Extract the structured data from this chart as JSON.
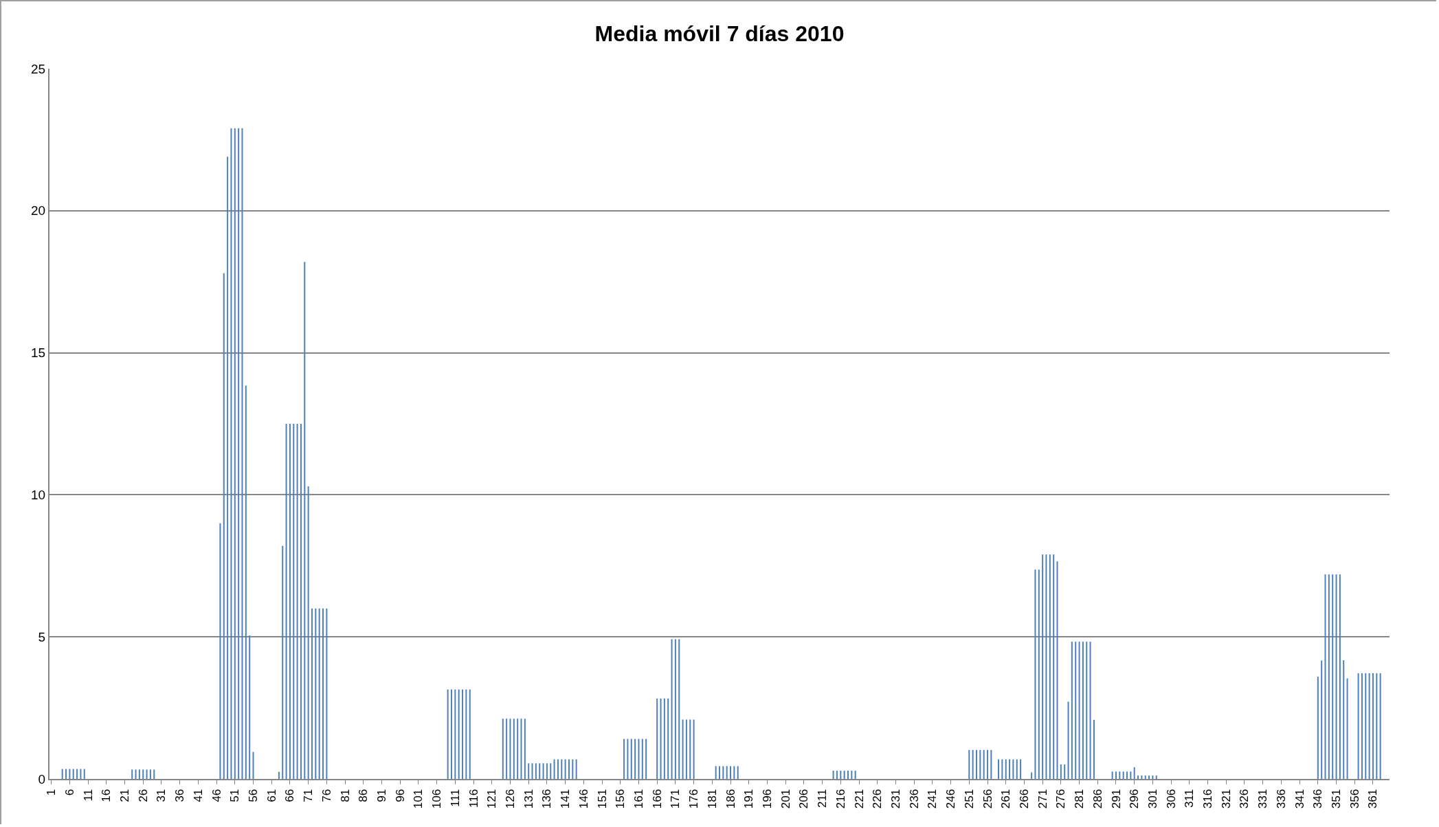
{
  "chart_data": {
    "type": "bar",
    "title": "Media móvil 7 días 2010",
    "color": "#4f81bd",
    "ylim": [
      0,
      25
    ],
    "yticks": [
      0,
      5,
      10,
      15,
      20,
      25
    ],
    "grid": "y",
    "categories": [
      "1",
      null,
      null,
      null,
      null,
      "6",
      null,
      null,
      null,
      null,
      "11",
      null,
      null,
      null,
      null,
      "16",
      null,
      null,
      null,
      null,
      "21",
      null,
      null,
      null,
      null,
      "26",
      null,
      null,
      null,
      null,
      "31",
      null,
      null,
      null,
      null,
      "36",
      null,
      null,
      null,
      null,
      "41",
      null,
      null,
      null,
      null,
      "46",
      null,
      null,
      null,
      null,
      "51",
      null,
      null,
      null,
      null,
      "56",
      null,
      null,
      null,
      null,
      "61",
      null,
      null,
      null,
      null,
      "66",
      null,
      null,
      null,
      null,
      "71",
      null,
      null,
      null,
      null,
      "76",
      null,
      null,
      null,
      null,
      "81",
      null,
      null,
      null,
      null,
      "86",
      null,
      null,
      null,
      null,
      "91",
      null,
      null,
      null,
      null,
      "96",
      null,
      null,
      null,
      null,
      "101",
      null,
      null,
      null,
      null,
      "106",
      null,
      null,
      null,
      null,
      "111",
      null,
      null,
      null,
      null,
      "116",
      null,
      null,
      null,
      null,
      "121",
      null,
      null,
      null,
      null,
      "126",
      null,
      null,
      null,
      null,
      "131",
      null,
      null,
      null,
      null,
      "136",
      null,
      null,
      null,
      null,
      "141",
      null,
      null,
      null,
      null,
      "146",
      null,
      null,
      null,
      null,
      "151",
      null,
      null,
      null,
      null,
      "156",
      null,
      null,
      null,
      null,
      "161",
      null,
      null,
      null,
      null,
      "166",
      null,
      null,
      null,
      null,
      "171",
      null,
      null,
      null,
      null,
      "176",
      null,
      null,
      null,
      null,
      "181",
      null,
      null,
      null,
      null,
      "186",
      null,
      null,
      null,
      null,
      "191",
      null,
      null,
      null,
      null,
      "196",
      null,
      null,
      null,
      null,
      "201",
      null,
      null,
      null,
      null,
      "206",
      null,
      null,
      null,
      null,
      "211",
      null,
      null,
      null,
      null,
      "216",
      null,
      null,
      null,
      null,
      "221",
      null,
      null,
      null,
      null,
      "226",
      null,
      null,
      null,
      null,
      "231",
      null,
      null,
      null,
      null,
      "236",
      null,
      null,
      null,
      null,
      "241",
      null,
      null,
      null,
      null,
      "246",
      null,
      null,
      null,
      null,
      "251",
      null,
      null,
      null,
      null,
      "256",
      null,
      null,
      null,
      null,
      "261",
      null,
      null,
      null,
      null,
      "266",
      null,
      null,
      null,
      null,
      "271",
      null,
      null,
      null,
      null,
      "276",
      null,
      null,
      null,
      null,
      "281",
      null,
      null,
      null,
      null,
      "286",
      null,
      null,
      null,
      null,
      "291",
      null,
      null,
      null,
      null,
      "296",
      null,
      null,
      null,
      null,
      "301",
      null,
      null,
      null,
      null,
      "306",
      null,
      null,
      null,
      null,
      "311",
      null,
      null,
      null,
      null,
      "316",
      null,
      null,
      null,
      null,
      "321",
      null,
      null,
      null,
      null,
      "326",
      null,
      null,
      null,
      null,
      "331",
      null,
      null,
      null,
      null,
      "336",
      null,
      null,
      null,
      null,
      "341",
      null,
      null,
      null,
      null,
      "346",
      null,
      null,
      null,
      null,
      "351",
      null,
      null,
      null,
      null,
      "356",
      null,
      null,
      null,
      null,
      "361",
      null,
      null,
      null,
      null
    ],
    "values": [
      0,
      0,
      0,
      0.35,
      0.35,
      0.35,
      0.35,
      0.35,
      0.35,
      0.35,
      0,
      0,
      0,
      0,
      0,
      0,
      0,
      0,
      0,
      0,
      0,
      0,
      0.33,
      0.33,
      0.33,
      0.33,
      0.33,
      0.33,
      0.33,
      0,
      0,
      0,
      0,
      0,
      0,
      0,
      0,
      0,
      0,
      0,
      0,
      0,
      0,
      0,
      0,
      0,
      9,
      17.8,
      21.9,
      22.9,
      22.9,
      22.9,
      22.9,
      13.85,
      5.05,
      0.95,
      0,
      0,
      0,
      0,
      0,
      0,
      0.25,
      8.2,
      12.5,
      12.5,
      12.5,
      12.5,
      12.5,
      18.2,
      10.3,
      6,
      6,
      6,
      6,
      6,
      0,
      0,
      0,
      0,
      0,
      0,
      0,
      0,
      0,
      0,
      0,
      0,
      0,
      0,
      0,
      0,
      0,
      0,
      0,
      0,
      0,
      0,
      0,
      0,
      0,
      0,
      0,
      0,
      0,
      0,
      0,
      0,
      3.15,
      3.15,
      3.15,
      3.15,
      3.15,
      3.15,
      3.15,
      0,
      0,
      0,
      0,
      0,
      0,
      0,
      0,
      2.12,
      2.12,
      2.12,
      2.12,
      2.12,
      2.12,
      2.12,
      0.55,
      0.55,
      0.55,
      0.55,
      0.55,
      0.55,
      0.55,
      0.69,
      0.69,
      0.69,
      0.69,
      0.69,
      0.69,
      0.69,
      0,
      0,
      0,
      0,
      0,
      0,
      0,
      0,
      0,
      0,
      0,
      0,
      1.41,
      1.41,
      1.41,
      1.41,
      1.41,
      1.41,
      1.41,
      0,
      0,
      2.83,
      2.83,
      2.83,
      2.83,
      4.92,
      4.92,
      4.92,
      2.09,
      2.09,
      2.09,
      2.09,
      0,
      0,
      0,
      0,
      0,
      0.45,
      0.45,
      0.45,
      0.45,
      0.45,
      0.45,
      0.45,
      0,
      0,
      0,
      0,
      0,
      0,
      0,
      0,
      0,
      0,
      0,
      0,
      0,
      0,
      0,
      0,
      0,
      0,
      0,
      0,
      0,
      0,
      0,
      0,
      0,
      0.29,
      0.29,
      0.29,
      0.29,
      0.29,
      0.29,
      0.29,
      0,
      0,
      0,
      0,
      0,
      0,
      0,
      0,
      0,
      0,
      0,
      0,
      0,
      0,
      0,
      0,
      0,
      0,
      0,
      0,
      0,
      0,
      0,
      0,
      0,
      0,
      0,
      0,
      0,
      0,
      1.02,
      1.02,
      1.02,
      1.02,
      1.02,
      1.02,
      1.02,
      0,
      0.69,
      0.69,
      0.69,
      0.69,
      0.69,
      0.69,
      0.69,
      0,
      0,
      0.23,
      7.37,
      7.37,
      7.9,
      7.9,
      7.9,
      7.9,
      7.66,
      0.51,
      0.51,
      2.72,
      4.83,
      4.83,
      4.83,
      4.83,
      4.83,
      4.83,
      2.08,
      0,
      0,
      0,
      0,
      0.26,
      0.26,
      0.26,
      0.26,
      0.26,
      0.26,
      0.41,
      0.12,
      0.12,
      0.12,
      0.12,
      0.12,
      0.12,
      0,
      0,
      0,
      0,
      0,
      0,
      0,
      0,
      0,
      0,
      0,
      0,
      0,
      0,
      0,
      0,
      0,
      0,
      0,
      0,
      0,
      0,
      0,
      0,
      0,
      0,
      0,
      0,
      0,
      0,
      0,
      0,
      0,
      0,
      0,
      0,
      0,
      0,
      0,
      0,
      0,
      0,
      0,
      3.6,
      4.17,
      7.2,
      7.2,
      7.2,
      7.2,
      7.2,
      4.18,
      3.54,
      0,
      0,
      3.72,
      3.72,
      3.72,
      3.72,
      3.72,
      3.72,
      3.72,
      0,
      0
    ]
  }
}
